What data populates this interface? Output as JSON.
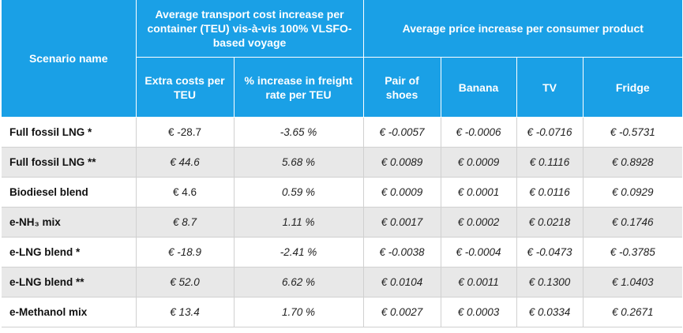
{
  "header": {
    "scenario": "Scenario name",
    "group1": "Average transport cost increase per container (TEU) vis-à-vis 100% VLSFO-based voyage",
    "group2": "Average price increase per consumer product",
    "cols": [
      "Extra costs per TEU",
      "% increase in freight rate per TEU",
      "Pair of shoes",
      "Banana",
      "TV",
      "Fridge"
    ]
  },
  "rows": [
    {
      "name": "Full fossil LNG *",
      "cells": [
        "€ -28.7",
        "-3.65 %",
        "€ -0.0057",
        "€ -0.0006",
        "€ -0.0716",
        "€ -0.5731"
      ]
    },
    {
      "name": "Full fossil LNG  **",
      "cells": [
        "€ 44.6",
        "5.68 %",
        "€ 0.0089",
        "€ 0.0009",
        "€ 0.1116",
        "€ 0.8928"
      ]
    },
    {
      "name": "Biodiesel blend",
      "cells": [
        "€ 4.6",
        "0.59 %",
        "€ 0.0009",
        "€ 0.0001",
        "€ 0.0116",
        "€ 0.0929"
      ]
    },
    {
      "name": "e-NH₃ mix",
      "cells": [
        "€ 8.7",
        "1.11 %",
        "€ 0.0017",
        "€ 0.0002",
        "€ 0.0218",
        "€ 0.1746"
      ]
    },
    {
      "name": "e-LNG blend *",
      "cells": [
        "€ -18.9",
        "-2.41 %",
        "€ -0.0038",
        "€ -0.0004",
        "€ -0.0473",
        "€ -0.3785"
      ]
    },
    {
      "name": "e-LNG blend **",
      "cells": [
        "€ 52.0",
        "6.62 %",
        "€ 0.0104",
        "€ 0.0011",
        "€ 0.1300",
        "€ 1.0403"
      ]
    },
    {
      "name": "e-Methanol mix",
      "cells": [
        "€ 13.4",
        "1.70 %",
        "€ 0.0027",
        "€ 0.0003",
        "€ 0.0334",
        "€ 0.2671"
      ]
    }
  ]
}
